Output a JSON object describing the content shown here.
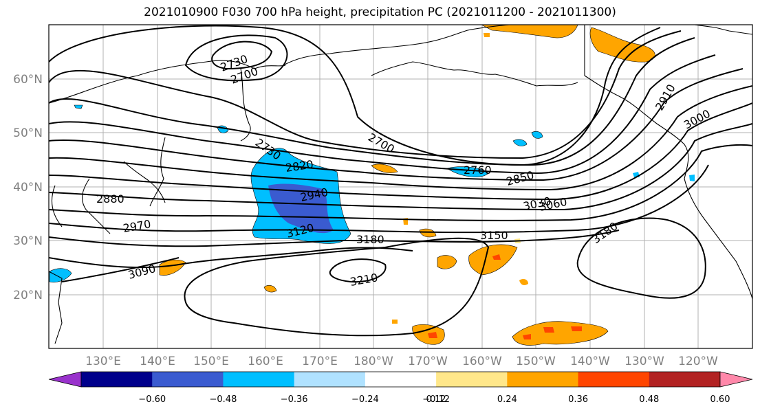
{
  "title": "2021010900 F030 700 hPa height, precipitation PC (2021011200 - 2021011300)",
  "colors": {
    "land_outline": "#000000",
    "grid": "#b0b0b0",
    "contour": "#000000",
    "bins": [
      "#9932cc",
      "#00008b",
      "#3a5bd0",
      "#00bfff",
      "#b0e2ff",
      "#ffffff",
      "#ffe78a",
      "#ffa500",
      "#ff4500",
      "#b22222",
      "#ff88aa"
    ]
  },
  "lat_labels": [
    "20°N",
    "30°N",
    "40°N",
    "50°N",
    "60°N"
  ],
  "lon_labels": [
    "130°E",
    "140°E",
    "150°E",
    "160°E",
    "170°E",
    "180°W",
    "170°W",
    "160°W",
    "150°W",
    "140°W",
    "130°W",
    "120°W"
  ],
  "contour_labels": [
    "2730",
    "2700",
    "2730",
    "2700",
    "2820",
    "2760",
    "2850",
    "2880",
    "2940",
    "3030",
    "3060",
    "2970",
    "3120",
    "3180",
    "3150",
    "3090",
    "3210",
    "3180",
    "2910",
    "3000"
  ],
  "colorbar": {
    "ticks": [
      "−0.60",
      "−0.48",
      "−0.36",
      "−0.24",
      "−0.12",
      "0.12",
      "0.24",
      "0.36",
      "0.48",
      "0.60"
    ]
  }
}
